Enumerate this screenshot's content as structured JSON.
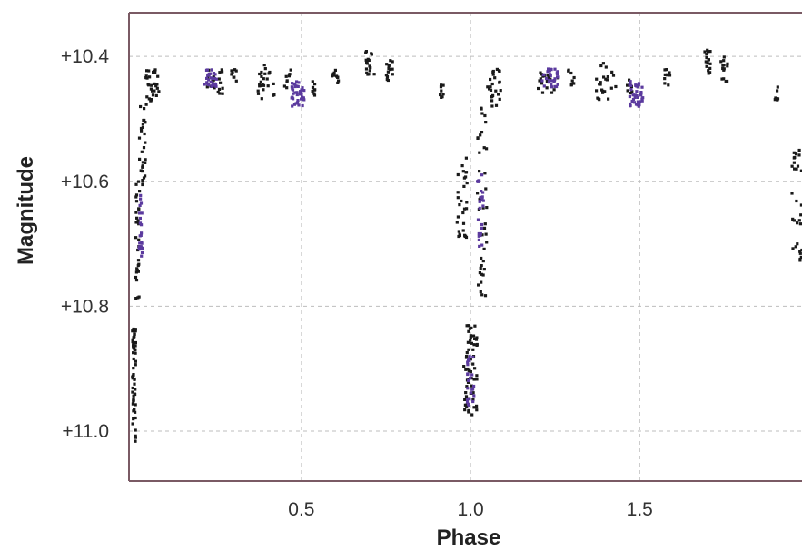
{
  "chart_data": {
    "type": "scatter",
    "xlabel": "Phase",
    "ylabel": "Magnitude",
    "xlim": [
      -0.01,
      1.98
    ],
    "ylim": [
      11.08,
      10.33
    ],
    "y_inverted": true,
    "grid": true,
    "grid_style": "dashed",
    "x_ticks": [
      0.5,
      1.0,
      1.5
    ],
    "x_tick_labels": [
      "0.5",
      "1.0",
      "1.5"
    ],
    "y_ticks": [
      10.4,
      10.6,
      10.8,
      11.0
    ],
    "y_tick_labels": [
      "+10.4",
      "+10.6",
      "+10.8",
      "+11.0"
    ],
    "colors": {
      "series_a": "#1a1a1a",
      "series_b": "#5b3a9e",
      "frame": "#7a5a64",
      "grid": "#bdbdbd"
    },
    "series": [
      {
        "color": "#1a1a1a",
        "clusters": [
          {
            "x": [
              0.0,
              0.01
            ],
            "y": [
              10.83,
              11.02
            ],
            "n": 60
          },
          {
            "x": [
              0.01,
              0.02
            ],
            "y": [
              10.6,
              10.8
            ],
            "n": 30
          },
          {
            "x": [
              0.02,
              0.04
            ],
            "y": [
              10.48,
              10.62
            ],
            "n": 30
          },
          {
            "x": [
              0.04,
              0.08
            ],
            "y": [
              10.42,
              10.48
            ],
            "n": 30
          },
          {
            "x": [
              0.22,
              0.27
            ],
            "y": [
              10.42,
              10.46
            ],
            "n": 18
          },
          {
            "x": [
              0.29,
              0.31
            ],
            "y": [
              10.42,
              10.44
            ],
            "n": 8
          },
          {
            "x": [
              0.37,
              0.42
            ],
            "y": [
              10.41,
              10.47
            ],
            "n": 24
          },
          {
            "x": [
              0.45,
              0.47
            ],
            "y": [
              10.42,
              10.47
            ],
            "n": 8
          },
          {
            "x": [
              0.52,
              0.54
            ],
            "y": [
              10.43,
              10.47
            ],
            "n": 8
          },
          {
            "x": [
              0.59,
              0.61
            ],
            "y": [
              10.42,
              10.45
            ],
            "n": 10
          },
          {
            "x": [
              0.69,
              0.72
            ],
            "y": [
              10.39,
              10.43
            ],
            "n": 18
          },
          {
            "x": [
              0.75,
              0.77
            ],
            "y": [
              10.4,
              10.44
            ],
            "n": 14
          },
          {
            "x": [
              0.91,
              0.92
            ],
            "y": [
              10.44,
              10.47
            ],
            "n": 8
          },
          {
            "x": [
              0.96,
              0.99
            ],
            "y": [
              10.55,
              10.7
            ],
            "n": 30
          },
          {
            "x": [
              0.98,
              1.02
            ],
            "y": [
              10.83,
              10.98
            ],
            "n": 60
          },
          {
            "x": [
              1.02,
              1.05
            ],
            "y": [
              10.48,
              10.8
            ],
            "n": 40
          },
          {
            "x": [
              1.05,
              1.09
            ],
            "y": [
              10.42,
              10.48
            ],
            "n": 25
          },
          {
            "x": [
              1.2,
              1.26
            ],
            "y": [
              10.42,
              10.46
            ],
            "n": 18
          },
          {
            "x": [
              1.28,
              1.31
            ],
            "y": [
              10.42,
              10.45
            ],
            "n": 8
          },
          {
            "x": [
              1.37,
              1.43
            ],
            "y": [
              10.41,
              10.47
            ],
            "n": 24
          },
          {
            "x": [
              1.46,
              1.48
            ],
            "y": [
              10.43,
              10.47
            ],
            "n": 8
          },
          {
            "x": [
              1.57,
              1.59
            ],
            "y": [
              10.42,
              10.45
            ],
            "n": 10
          },
          {
            "x": [
              1.69,
              1.71
            ],
            "y": [
              10.39,
              10.43
            ],
            "n": 16
          },
          {
            "x": [
              1.74,
              1.76
            ],
            "y": [
              10.4,
              10.44
            ],
            "n": 14
          },
          {
            "x": [
              1.9,
              1.91
            ],
            "y": [
              10.44,
              10.47
            ],
            "n": 8
          },
          {
            "x": [
              1.95,
              1.98
            ],
            "y": [
              10.55,
              10.73
            ],
            "n": 30
          }
        ]
      },
      {
        "color": "#5b3a9e",
        "clusters": [
          {
            "x": [
              0.02,
              0.03
            ],
            "y": [
              10.62,
              10.72
            ],
            "n": 25
          },
          {
            "x": [
              0.21,
              0.25
            ],
            "y": [
              10.42,
              10.45
            ],
            "n": 30
          },
          {
            "x": [
              0.47,
              0.51
            ],
            "y": [
              10.44,
              10.48
            ],
            "n": 40
          },
          {
            "x": [
              0.99,
              1.01
            ],
            "y": [
              10.88,
              10.96
            ],
            "n": 25
          },
          {
            "x": [
              1.02,
              1.04
            ],
            "y": [
              10.58,
              10.72
            ],
            "n": 25
          },
          {
            "x": [
              1.21,
              1.26
            ],
            "y": [
              10.42,
              10.45
            ],
            "n": 30
          },
          {
            "x": [
              1.47,
              1.51
            ],
            "y": [
              10.44,
              10.48
            ],
            "n": 40
          }
        ]
      }
    ]
  }
}
